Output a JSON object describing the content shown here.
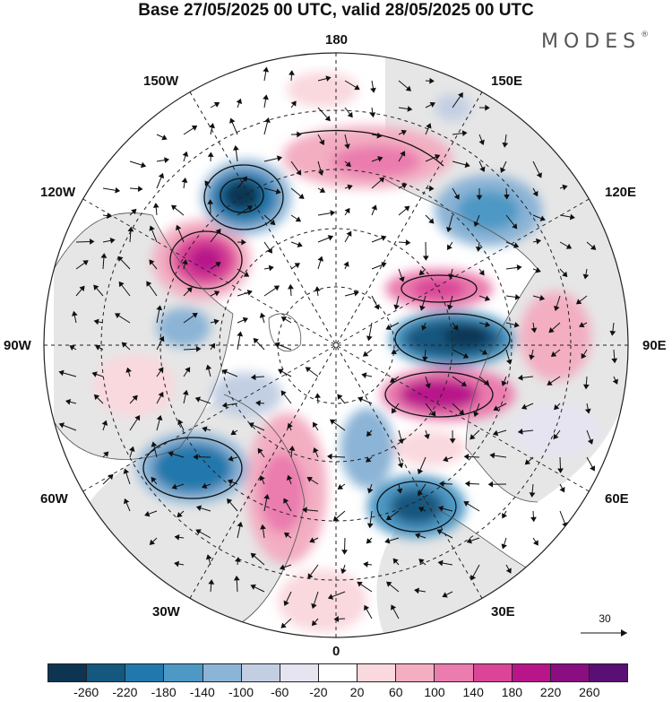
{
  "title": "Base 27/05/2025 00 UTC, valid 28/05/2025 00 UTC",
  "brand": "MODES",
  "brand_mark": "®",
  "longitude_labels": {
    "l180": "180",
    "l150e": "150E",
    "l120e": "120E",
    "l90e": "90E",
    "l60e": "60E",
    "l30e": "30E",
    "l0": "0",
    "l30w": "30W",
    "l60w": "60W",
    "l90w": "90W",
    "l120w": "120W",
    "l150w": "150W"
  },
  "reference_vector": "30",
  "colorbar": {
    "labels": [
      "-260",
      "-220",
      "-180",
      "-140",
      "-100",
      "-60",
      "-20",
      "20",
      "60",
      "100",
      "140",
      "180",
      "220",
      "260"
    ],
    "colors": [
      "#0d3552",
      "#14577f",
      "#2278ac",
      "#4d98c4",
      "#8bb4d6",
      "#c2cfe3",
      "#e6e4f0",
      "#ffffff",
      "#f9d8de",
      "#f3aec2",
      "#ea7cae",
      "#da4597",
      "#b8158a",
      "#8a0e82",
      "#5a0f74"
    ]
  },
  "colors": {
    "land_gray": "#e8e8e8",
    "coast": "#444444",
    "contour": "#111111"
  }
}
